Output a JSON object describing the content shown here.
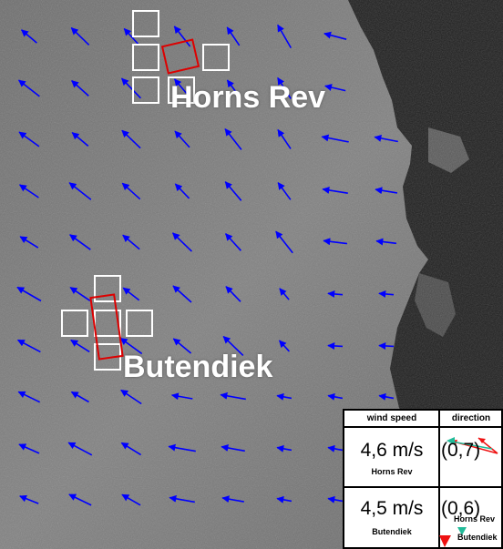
{
  "sites": {
    "horns_rev": {
      "name": "Horns Rev"
    },
    "butendiek": {
      "name": "Butendiek"
    }
  },
  "legend": {
    "col_speed": "wind speed",
    "col_direction": "direction",
    "rows": [
      {
        "speed": "4,6 m/s",
        "site": "Horns Rev",
        "direction_value": "(0,7)"
      },
      {
        "speed": "4,5 m/s",
        "site": "Butendiek",
        "direction_value": "(0,6)"
      }
    ],
    "key_labels": [
      "Horns Rev",
      "Butendiek"
    ]
  },
  "colors": {
    "wind_vector": "#0000ff",
    "turbine_cell": "#ffffff",
    "wind_farm_outline": "#dd0000",
    "key_red": "#ee1111",
    "key_green": "#22bb99"
  }
}
